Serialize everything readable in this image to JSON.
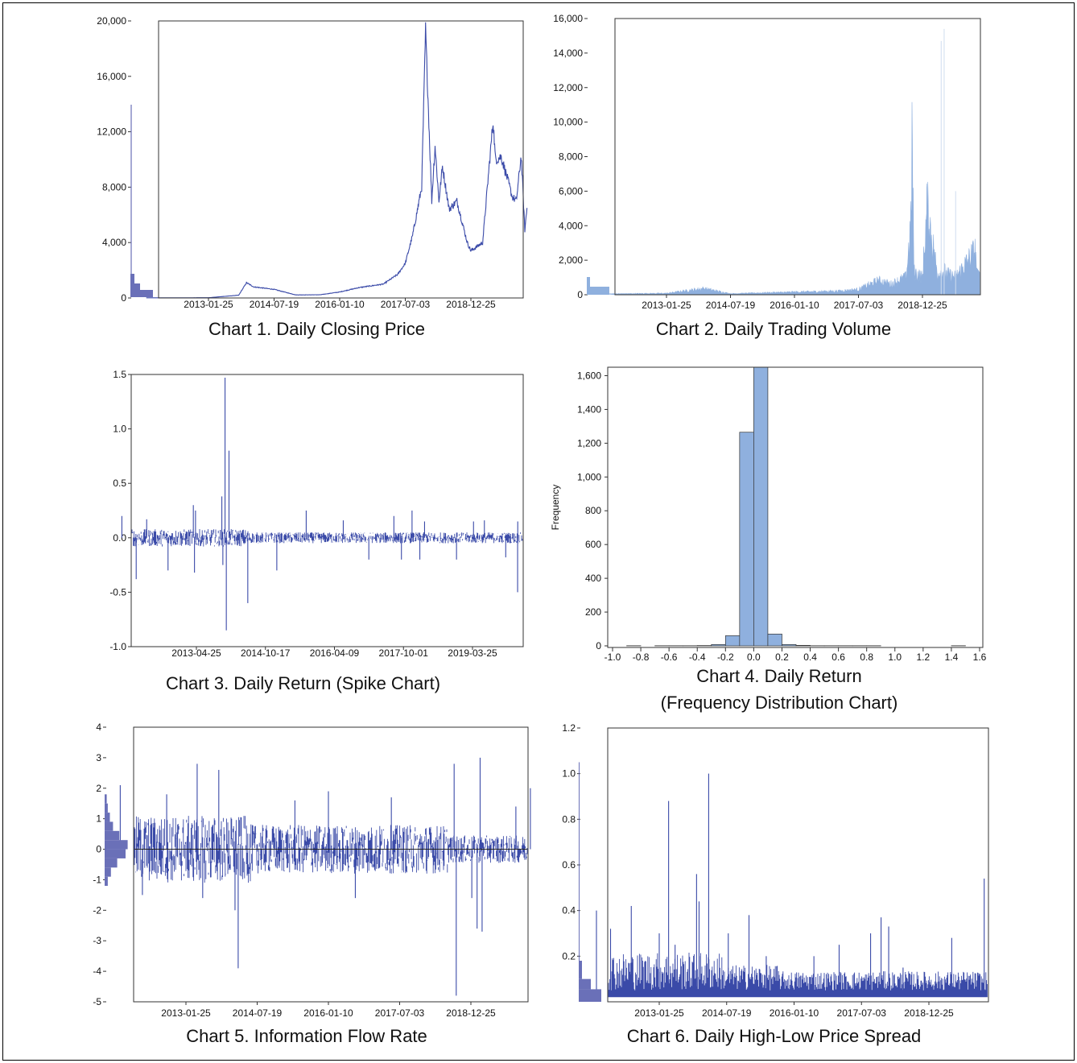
{
  "chart_data": [
    {
      "id": "c1",
      "type": "line",
      "caption": "Chart 1. Daily Closing Price",
      "color": "#3a4aa8",
      "x_ticks": [
        "2013-01-25",
        "2014-07-19",
        "2016-01-10",
        "2017-07-03",
        "2018-12-25"
      ],
      "y_ticks": [
        "0",
        "4,000",
        "8,000",
        "12,000",
        "16,000",
        "20,000"
      ],
      "ylim": [
        0,
        20000
      ],
      "has_marginal_histogram": true,
      "series": [
        {
          "x": [
            "2011-09-01",
            "2012-06-01",
            "2013-01-25",
            "2013-10-01",
            "2013-12-04",
            "2014-02-01",
            "2014-07-19",
            "2015-01-14",
            "2015-08-01",
            "2016-01-10",
            "2016-06-17",
            "2017-01-03",
            "2017-05-01",
            "2017-07-03",
            "2017-09-01",
            "2017-11-15",
            "2017-12-17",
            "2018-02-06",
            "2018-03-05",
            "2018-04-06",
            "2018-05-05",
            "2018-06-29",
            "2018-09-01",
            "2018-11-25",
            "2018-12-25",
            "2019-04-01",
            "2019-06-26",
            "2019-07-15",
            "2019-09-01",
            "2019-10-25",
            "2019-12-01",
            "2020-01-03",
            "2020-02-12",
            "2020-03-13",
            "2020-03-31"
          ],
          "y": [
            10,
            10,
            18,
            200,
            1100,
            800,
            620,
            220,
            230,
            430,
            750,
            1000,
            1700,
            2500,
            4500,
            8000,
            19300,
            7000,
            11000,
            7000,
            9500,
            6400,
            7000,
            4000,
            3400,
            4000,
            12800,
            10000,
            10200,
            8500,
            7300,
            7000,
            10300,
            4900,
            6500
          ]
        }
      ]
    },
    {
      "id": "c2",
      "type": "area",
      "caption": "Chart 2. Daily Trading Volume",
      "color": "#8fb0de",
      "x_ticks": [
        "2013-01-25",
        "2014-07-19",
        "2016-01-10",
        "2017-07-03",
        "2018-12-25"
      ],
      "y_ticks": [
        "0",
        "2,000",
        "4,000",
        "6,000",
        "8,000",
        "10,000",
        "12,000",
        "14,000",
        "16,000"
      ],
      "ylim": [
        0,
        16000
      ],
      "has_marginal_histogram": true,
      "series": [
        {
          "x": [
            "2011-09-01",
            "2013-01-25",
            "2013-12-04",
            "2014-07-19",
            "2016-01-10",
            "2017-01-03",
            "2017-07-03",
            "2017-12-17",
            "2018-04-01",
            "2018-08-10",
            "2018-09-20",
            "2018-09-28",
            "2018-10-15",
            "2018-12-25",
            "2019-01-29",
            "2019-02-02",
            "2019-05-01",
            "2019-06-26",
            "2019-07-10",
            "2019-10-01",
            "2020-03-13",
            "2020-03-31"
          ],
          "y": [
            50,
            80,
            350,
            60,
            150,
            200,
            300,
            800,
            600,
            1000,
            4200,
            9500,
            1300,
            1000,
            4500,
            5000,
            1200,
            1400,
            1200,
            1000,
            2500,
            1300
          ]
        }
      ]
    },
    {
      "id": "c3",
      "type": "line",
      "caption": "Chart 3. Daily Return (Spike Chart)",
      "color": "#3a4aa8",
      "x_ticks": [
        "2013-04-25",
        "2014-10-17",
        "2016-04-09",
        "2017-10-01",
        "2019-03-25"
      ],
      "y_ticks": [
        "-1.0",
        "-0.5",
        "0.0",
        "0.5",
        "1.0",
        "1.5"
      ],
      "ylim": [
        -1.0,
        1.5
      ],
      "series": [
        {
          "spikes_x": [
            "2011-09-20",
            "2012-01-10",
            "2012-04-01",
            "2012-09-15",
            "2013-04-01",
            "2013-04-10",
            "2013-04-18",
            "2013-11-10",
            "2013-11-18",
            "2013-12-05",
            "2013-12-15",
            "2014-01-05",
            "2014-06-01",
            "2015-01-14",
            "2015-09-01",
            "2016-06-17",
            "2017-01-03",
            "2017-07-18",
            "2017-09-15",
            "2017-12-07",
            "2018-02-06",
            "2018-03-15",
            "2018-11-20",
            "2019-04-02",
            "2019-06-26",
            "2019-12-10",
            "2020-03-12",
            "2020-03-13"
          ],
          "spikes_y": [
            0.2,
            -0.38,
            0.17,
            -0.3,
            0.3,
            -0.32,
            0.25,
            0.38,
            -0.25,
            1.47,
            -0.85,
            0.8,
            -0.6,
            -0.3,
            0.25,
            0.16,
            -0.2,
            0.2,
            -0.2,
            0.25,
            -0.2,
            0.15,
            -0.2,
            0.15,
            0.16,
            -0.18,
            -0.5,
            0.15
          ]
        }
      ]
    },
    {
      "id": "c4",
      "type": "bar",
      "caption": "Chart 4. Daily Return",
      "caption_line2": "(Frequency Distribution Chart)",
      "ylabel": "Frequency",
      "color": "#8fb0de",
      "x_ticks": [
        "-1.0",
        "-0.8",
        "-0.6",
        "-0.4",
        "-0.2",
        "0.0",
        "0.2",
        "0.4",
        "0.6",
        "0.8",
        "1.0",
        "1.2",
        "1.4",
        "1.6"
      ],
      "y_ticks": [
        "0",
        "200",
        "400",
        "600",
        "800",
        "1,000",
        "1,200",
        "1,400",
        "1,600"
      ],
      "xlim": [
        -1.0,
        1.6
      ],
      "ylim": [
        0,
        1600
      ],
      "series": [
        {
          "bin_start": [
            -1.0,
            -0.9,
            -0.8,
            -0.7,
            -0.6,
            -0.5,
            -0.4,
            -0.3,
            -0.2,
            -0.1,
            0.0,
            0.1,
            0.2,
            0.3,
            0.4,
            0.5,
            0.6,
            0.7,
            0.8,
            0.9,
            1.0,
            1.1,
            1.2,
            1.3,
            1.4,
            1.5
          ],
          "bin_width": 0.1,
          "values": [
            0,
            1,
            0,
            1,
            1,
            1,
            2,
            8,
            60,
            1265,
            1650,
            70,
            8,
            3,
            1,
            1,
            1,
            1,
            1,
            0,
            0,
            0,
            0,
            0,
            1,
            0
          ]
        }
      ]
    },
    {
      "id": "c5",
      "type": "line",
      "caption": "Chart 5. Information Flow Rate",
      "color": "#3a4aa8",
      "x_ticks": [
        "2013-01-25",
        "2014-07-19",
        "2016-01-10",
        "2017-07-03",
        "2018-12-25"
      ],
      "y_ticks": [
        "-5",
        "-4",
        "-3",
        "-2",
        "-1",
        "0",
        "1",
        "2",
        "3",
        "4"
      ],
      "ylim": [
        -5,
        4
      ],
      "has_marginal_histogram": true,
      "series": [
        {
          "spikes_x": [
            "2011-09-15",
            "2012-03-01",
            "2012-09-01",
            "2013-04-20",
            "2013-06-01",
            "2013-10-01",
            "2014-02-01",
            "2014-02-25",
            "2015-05-01",
            "2016-01-10",
            "2016-08-01",
            "2017-05-01",
            "2018-08-20",
            "2018-09-05",
            "2019-01-01",
            "2019-02-10",
            "2019-03-05",
            "2019-03-20",
            "2019-12-01",
            "2020-03-20"
          ],
          "spikes_y": [
            2.1,
            -1.5,
            1.8,
            2.8,
            -1.6,
            2.6,
            -2.0,
            -3.9,
            1.6,
            1.9,
            -1.6,
            1.7,
            2.8,
            -4.8,
            -1.6,
            -2.6,
            3.0,
            -2.7,
            1.4,
            2.0
          ]
        }
      ]
    },
    {
      "id": "c6",
      "type": "line",
      "caption": "Chart 6. Daily High-Low Price Spread",
      "color": "#3a4aa8",
      "x_ticks": [
        "2013-01-25",
        "2014-07-19",
        "2016-01-10",
        "2017-07-03",
        "2018-12-25"
      ],
      "y_ticks": [
        "0.2",
        "0.4",
        "0.6",
        "0.8",
        "1.0",
        "1.2"
      ],
      "ylim": [
        0,
        1.2
      ],
      "has_marginal_histogram": true,
      "series": [
        {
          "spikes_x": [
            "2011-09-10",
            "2012-01-01",
            "2012-06-15",
            "2013-01-25",
            "2013-04-10",
            "2013-06-01",
            "2013-11-20",
            "2013-12-10",
            "2014-02-25",
            "2014-08-01",
            "2015-01-14",
            "2015-06-01",
            "2016-06-17",
            "2017-01-05",
            "2017-09-14",
            "2017-12-07",
            "2018-02-06",
            "2018-06-01",
            "2019-06-26",
            "2020-03-12"
          ],
          "spikes_y": [
            0.4,
            0.32,
            0.42,
            0.3,
            0.88,
            0.25,
            0.56,
            0.44,
            1.0,
            0.3,
            0.38,
            0.2,
            0.2,
            0.25,
            0.3,
            0.37,
            0.33,
            0.15,
            0.28,
            0.54
          ]
        }
      ]
    }
  ]
}
